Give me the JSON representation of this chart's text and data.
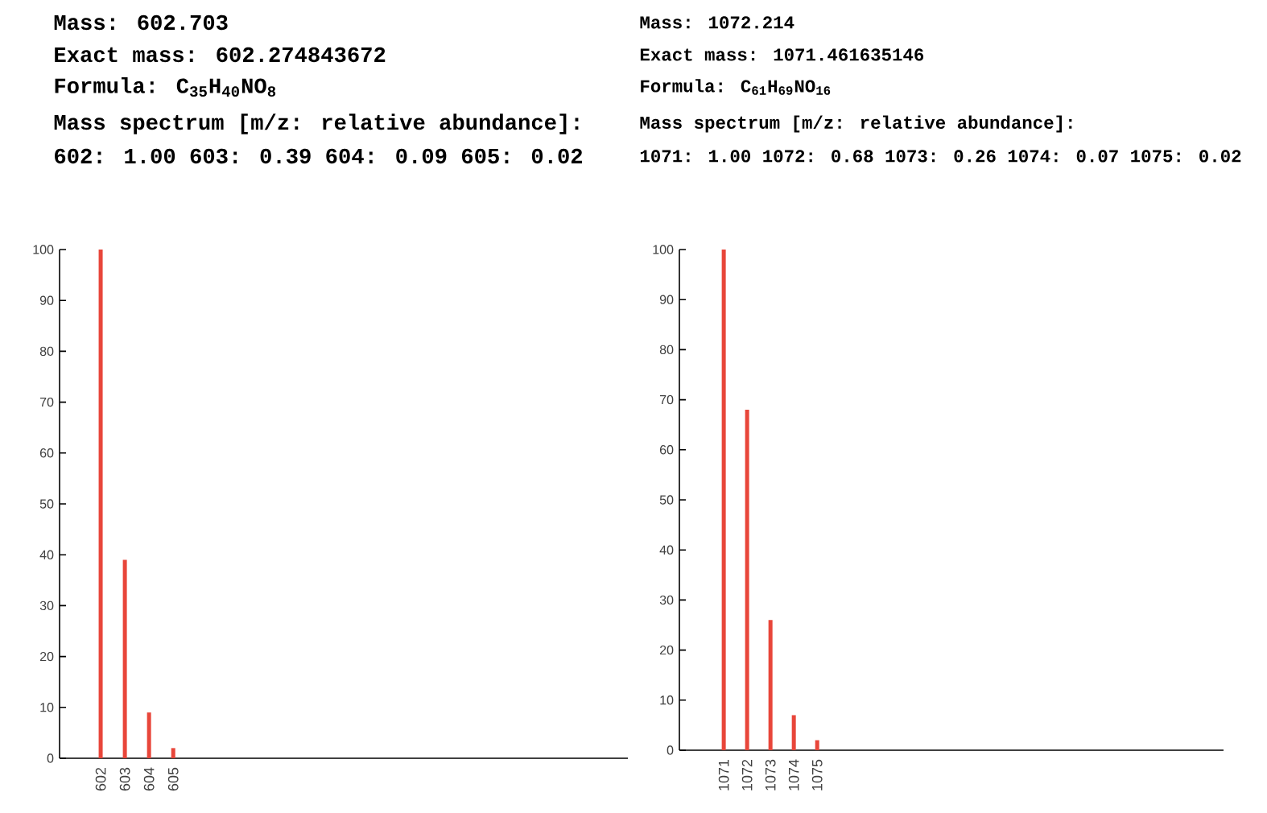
{
  "chart_data": [
    {
      "type": "bar",
      "title": "Mass: 602.703",
      "annotations": [
        "Exact mass: 602.274843672",
        "Formula: C$_{35}$H$_{40}$NO$_{8}$",
        "Mass spectrum [m/z: relative abundance]:",
        "602: 1.00 603: 0.39 604: 0.09 605: 0.02"
      ],
      "x": [
        602,
        603,
        604,
        605
      ],
      "values": [
        100,
        39,
        9,
        2
      ],
      "color": "#e8463a",
      "xlim": [
        600.3,
        623.8
      ],
      "xticks": [
        602,
        603,
        604,
        605
      ],
      "ylim": [
        0,
        100
      ],
      "yticks": [
        0,
        10,
        20,
        30,
        40,
        50,
        60,
        70,
        80,
        90,
        100
      ]
    },
    {
      "type": "bar",
      "title": "Mass: 1072.214",
      "annotations": [
        "Exact mass: 1071.461635146",
        "Formula: C$_{61}$H$_{69}$NO$_{16}$",
        "Mass spectrum [m/z: relative abundance]:",
        "1071: 1.00 1072: 0.68 1073: 0.26 1074: 0.07 1075: 0.02"
      ],
      "x": [
        1071,
        1072,
        1073,
        1074,
        1075
      ],
      "values": [
        100,
        68,
        26,
        7,
        2
      ],
      "color": "#e8463a",
      "xlim": [
        1069.1,
        1092.4
      ],
      "xticks": [
        1071,
        1072,
        1073,
        1074,
        1075
      ],
      "ylim": [
        0,
        100
      ],
      "yticks": [
        0,
        10,
        20,
        30,
        40,
        50,
        60,
        70,
        80,
        90,
        100
      ]
    }
  ]
}
